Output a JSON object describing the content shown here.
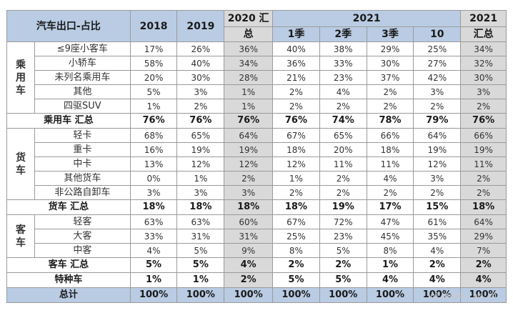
{
  "header": {
    "corner": "汽车出口-占比",
    "y2018": "2018",
    "y2019": "2019",
    "y2020_line1": "2020 汇",
    "y2020_line2": "总",
    "y2021": "2021",
    "q1": "1季",
    "q2": "2季",
    "q3": "3季",
    "m10": "10",
    "t2021_line1": "2021",
    "t2021_line2": "汇总"
  },
  "groups": {
    "passenger": "乘用车",
    "truck": "货车",
    "bus": "客车"
  },
  "rows": {
    "p1": {
      "label": "≤9座小客车",
      "v": [
        "17%",
        "26%",
        "36%",
        "40%",
        "38%",
        "29%",
        "25%",
        "34%"
      ]
    },
    "p2": {
      "label": "小轿车",
      "v": [
        "58%",
        "40%",
        "34%",
        "36%",
        "33%",
        "30%",
        "27%",
        "32%"
      ]
    },
    "p3": {
      "label": "未列名乘用车",
      "v": [
        "20%",
        "30%",
        "28%",
        "21%",
        "23%",
        "37%",
        "42%",
        "30%"
      ]
    },
    "p4": {
      "label": "其他",
      "v": [
        "5%",
        "3%",
        "1%",
        "2%",
        "4%",
        "2%",
        "3%",
        "3%"
      ]
    },
    "p5": {
      "label": "四驱SUV",
      "v": [
        "1%",
        "2%",
        "1%",
        "2%",
        "2%",
        "2%",
        "2%",
        "2%"
      ]
    },
    "psum": {
      "label": "乘用车 汇总",
      "v": [
        "76%",
        "76%",
        "76%",
        "76%",
        "74%",
        "78%",
        "79%",
        "76%"
      ]
    },
    "t1": {
      "label": "轻卡",
      "v": [
        "68%",
        "65%",
        "64%",
        "67%",
        "65%",
        "66%",
        "64%",
        "66%"
      ]
    },
    "t2": {
      "label": "重卡",
      "v": [
        "16%",
        "19%",
        "19%",
        "18%",
        "20%",
        "18%",
        "19%",
        "19%"
      ]
    },
    "t3": {
      "label": "中卡",
      "v": [
        "13%",
        "12%",
        "12%",
        "12%",
        "11%",
        "11%",
        "12%",
        "11%"
      ]
    },
    "t4": {
      "label": "其他货车",
      "v": [
        "0%",
        "1%",
        "2%",
        "1%",
        "2%",
        "4%",
        "3%",
        "2%"
      ]
    },
    "t5": {
      "label": "非公路自卸车",
      "v": [
        "3%",
        "3%",
        "3%",
        "2%",
        "2%",
        "2%",
        "2%",
        "2%"
      ]
    },
    "tsum": {
      "label": "货车 汇总",
      "v": [
        "18%",
        "18%",
        "18%",
        "18%",
        "19%",
        "17%",
        "15%",
        "18%"
      ]
    },
    "b1": {
      "label": "轻客",
      "v": [
        "63%",
        "63%",
        "60%",
        "67%",
        "72%",
        "47%",
        "61%",
        "64%"
      ]
    },
    "b2": {
      "label": "大客",
      "v": [
        "33%",
        "31%",
        "31%",
        "25%",
        "23%",
        "45%",
        "35%",
        "29%"
      ]
    },
    "b3": {
      "label": "中客",
      "v": [
        "4%",
        "5%",
        "9%",
        "8%",
        "5%",
        "8%",
        "4%",
        "7%"
      ]
    },
    "bsum": {
      "label": "客车 汇总",
      "v": [
        "5%",
        "5%",
        "4%",
        "2%",
        "2%",
        "1%",
        "2%",
        "2%"
      ]
    },
    "special": {
      "label": "特种车",
      "v": [
        "1%",
        "1%",
        "2%",
        "5%",
        "5%",
        "4%",
        "4%",
        "4%"
      ]
    },
    "total": {
      "label": "总计",
      "v": [
        "100%",
        "100%",
        "100%",
        "100%",
        "100%",
        "100%",
        "100%",
        "100%"
      ]
    }
  },
  "watermark": "gl.pedd.com.cn"
}
